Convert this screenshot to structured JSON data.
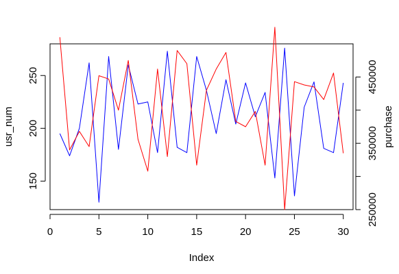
{
  "chart_data": {
    "type": "line",
    "title": "",
    "xlabel": "Index",
    "ylabel_left": "usr_num",
    "ylabel_right": "purchase",
    "xlim": [
      0,
      31
    ],
    "ylim_left": [
      123,
      280
    ],
    "ylim_right": [
      250000,
      500000
    ],
    "x_ticks": [
      0,
      5,
      10,
      15,
      20,
      25,
      30
    ],
    "y_left_ticks": [
      150,
      200,
      250
    ],
    "y_right_ticks": [
      250000,
      300000,
      350000,
      400000,
      450000
    ],
    "y_right_tick_labels": [
      "250000",
      "",
      "350000",
      "",
      "450000"
    ],
    "grid": false,
    "x": [
      1,
      2,
      3,
      4,
      5,
      6,
      7,
      8,
      9,
      10,
      11,
      12,
      13,
      14,
      15,
      16,
      17,
      18,
      19,
      20,
      21,
      22,
      23,
      24,
      25,
      26,
      27,
      28,
      29,
      30
    ],
    "series": [
      {
        "axis": "left",
        "color": "#0000ff",
        "values": [
          195,
          174,
          200,
          262,
          130,
          268,
          180,
          260,
          223,
          225,
          177,
          273,
          182,
          177,
          268,
          236,
          195,
          246,
          204,
          243,
          211,
          234,
          153,
          276,
          136,
          220,
          244,
          181,
          177,
          243
        ]
      },
      {
        "axis": "right",
        "color": "#ff0000",
        "values": [
          510000,
          340000,
          368000,
          345000,
          452000,
          447000,
          400000,
          475000,
          356000,
          308000,
          462000,
          330000,
          490000,
          470000,
          317000,
          430000,
          462000,
          487000,
          383000,
          375000,
          398000,
          317000,
          525000,
          250000,
          443000,
          438000,
          435000,
          416000,
          456000,
          335000
        ]
      }
    ]
  }
}
